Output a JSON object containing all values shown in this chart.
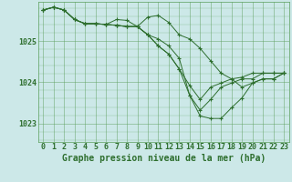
{
  "background_color": "#cce8e8",
  "grid_color": "#5a9e5a",
  "line_color": "#2d6e2d",
  "marker_color": "#2d6e2d",
  "xlabel": "Graphe pression niveau de la mer (hPa)",
  "xlabel_fontsize": 7,
  "tick_fontsize": 6,
  "ytick_labels": [
    "1023",
    "1024",
    "1025"
  ],
  "ytick_values": [
    1023,
    1024,
    1025
  ],
  "ylim": [
    1022.55,
    1025.95
  ],
  "xlim": [
    -0.5,
    23.5
  ],
  "xtick_values": [
    0,
    1,
    2,
    3,
    4,
    5,
    6,
    7,
    8,
    9,
    10,
    11,
    12,
    13,
    14,
    15,
    16,
    17,
    18,
    19,
    20,
    21,
    22,
    23
  ],
  "series": [
    [
      1025.75,
      1025.82,
      1025.75,
      1025.52,
      1025.42,
      1025.42,
      1025.4,
      1025.38,
      1025.35,
      1025.35,
      1025.58,
      1025.62,
      1025.45,
      1025.15,
      1025.05,
      1024.82,
      1024.52,
      1024.22,
      1024.08,
      1023.88,
      1023.98,
      1024.08,
      1024.08,
      1024.22
    ],
    [
      1025.75,
      1025.82,
      1025.75,
      1025.52,
      1025.42,
      1025.42,
      1025.4,
      1025.38,
      1025.35,
      1025.35,
      1025.15,
      1025.05,
      1024.88,
      1024.58,
      1023.68,
      1023.18,
      1023.12,
      1023.12,
      1023.38,
      1023.62,
      1023.98,
      1024.08,
      1024.08,
      1024.22
    ],
    [
      1025.75,
      1025.82,
      1025.75,
      1025.52,
      1025.42,
      1025.42,
      1025.4,
      1025.38,
      1025.35,
      1025.35,
      1025.15,
      1024.88,
      1024.68,
      1024.32,
      1023.68,
      1023.32,
      1023.58,
      1023.88,
      1023.98,
      1024.08,
      1024.08,
      1024.22,
      1024.22,
      1024.22
    ],
    [
      1025.75,
      1025.82,
      1025.75,
      1025.52,
      1025.42,
      1025.42,
      1025.4,
      1025.52,
      1025.5,
      1025.35,
      1025.15,
      1024.88,
      1024.68,
      1024.32,
      1023.92,
      1023.58,
      1023.88,
      1023.98,
      1024.08,
      1024.12,
      1024.22,
      1024.22,
      1024.22,
      1024.22
    ]
  ]
}
